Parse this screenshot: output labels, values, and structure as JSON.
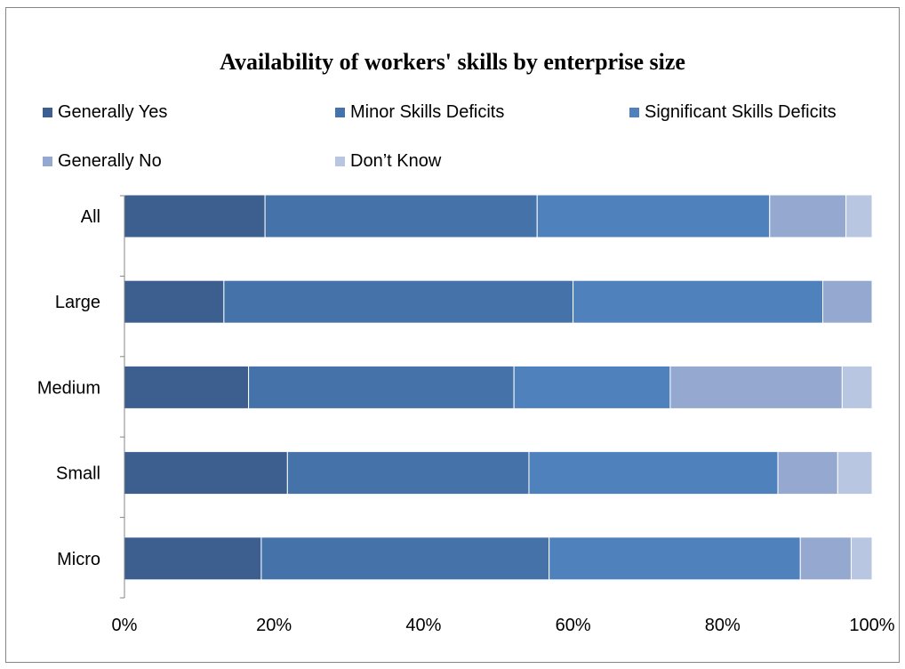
{
  "chart_data": {
    "type": "bar",
    "orientation": "horizontal",
    "stacked": "percent",
    "title": "Availability of workers' skills by enterprise size",
    "categories": [
      "All",
      "Large",
      "Medium",
      "Small",
      "Micro"
    ],
    "series": [
      {
        "name": "Generally Yes",
        "color": "#3c5f8f",
        "values": [
          18.8,
          13.3,
          16.6,
          21.8,
          18.3
        ]
      },
      {
        "name": "Minor Skills Deficits",
        "color": "#4572a8",
        "values": [
          36.4,
          46.7,
          35.5,
          32.3,
          38.5
        ]
      },
      {
        "name": "Significant Skills Deficits",
        "color": "#4f81bd",
        "values": [
          31.1,
          33.4,
          20.9,
          33.3,
          33.6
        ]
      },
      {
        "name": "Generally No",
        "color": "#95a9d0",
        "values": [
          10.2,
          6.6,
          23.0,
          8.0,
          6.8
        ]
      },
      {
        "name": "Don’t Know",
        "color": "#b9c6e1",
        "values": [
          3.5,
          0.0,
          4.0,
          4.6,
          2.8
        ]
      }
    ],
    "xlim": [
      0,
      100
    ],
    "x_ticks": [
      "0%",
      "20%",
      "40%",
      "60%",
      "80%",
      "100%"
    ],
    "grid": false,
    "legend_position": "top"
  }
}
